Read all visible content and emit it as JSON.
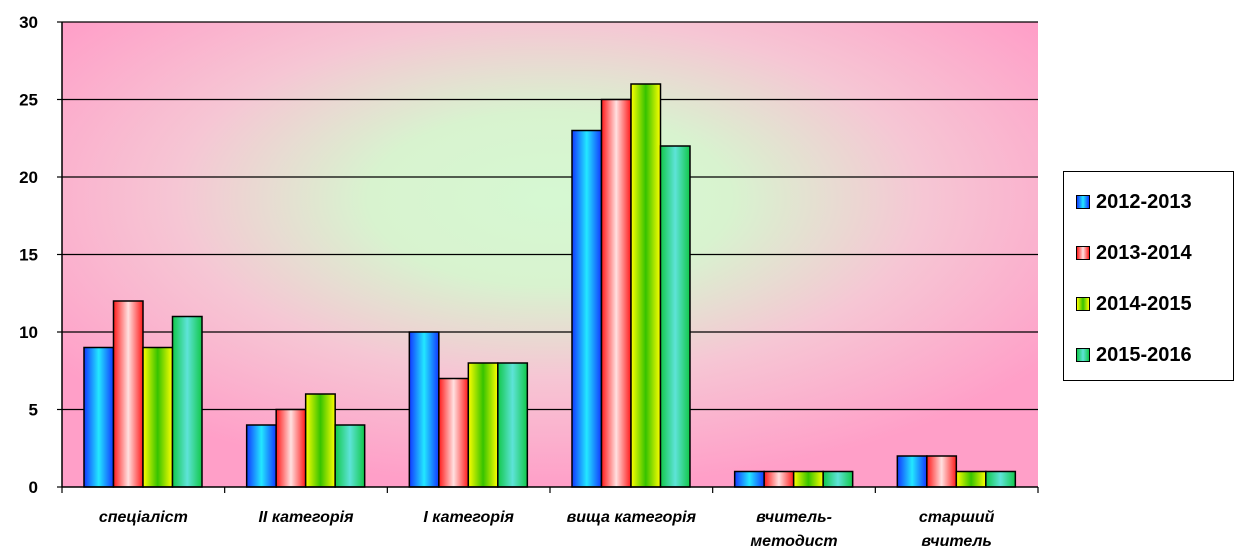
{
  "chart_data": {
    "type": "bar",
    "categories": [
      [
        "спеціаліст"
      ],
      [
        "ІІ категорія"
      ],
      [
        "І категорія"
      ],
      [
        "вища категорія"
      ],
      [
        "вчитель-",
        "методист"
      ],
      [
        "старший",
        "вчитель"
      ]
    ],
    "series": [
      {
        "name": "2012-2013",
        "values": [
          9,
          4,
          10,
          23,
          1,
          2
        ],
        "color": "#1f5fff"
      },
      {
        "name": "2013-2014",
        "values": [
          12,
          5,
          7,
          25,
          1,
          2
        ],
        "color": "#ff3b3b"
      },
      {
        "name": "2014-2015",
        "values": [
          9,
          6,
          8,
          26,
          1,
          1
        ],
        "color": "#f2f200"
      },
      {
        "name": "2015-2016",
        "values": [
          11,
          4,
          8,
          22,
          1,
          1
        ],
        "color": "#1fcf6a"
      }
    ],
    "yticks": [
      "0",
      "5",
      "10",
      "15",
      "20",
      "25",
      "30"
    ],
    "ylim": [
      0,
      30
    ],
    "grid": true,
    "legend_position": "right",
    "plot_colors": {
      "outer": "#ff9fc8",
      "center": "#d4f7d0"
    }
  }
}
